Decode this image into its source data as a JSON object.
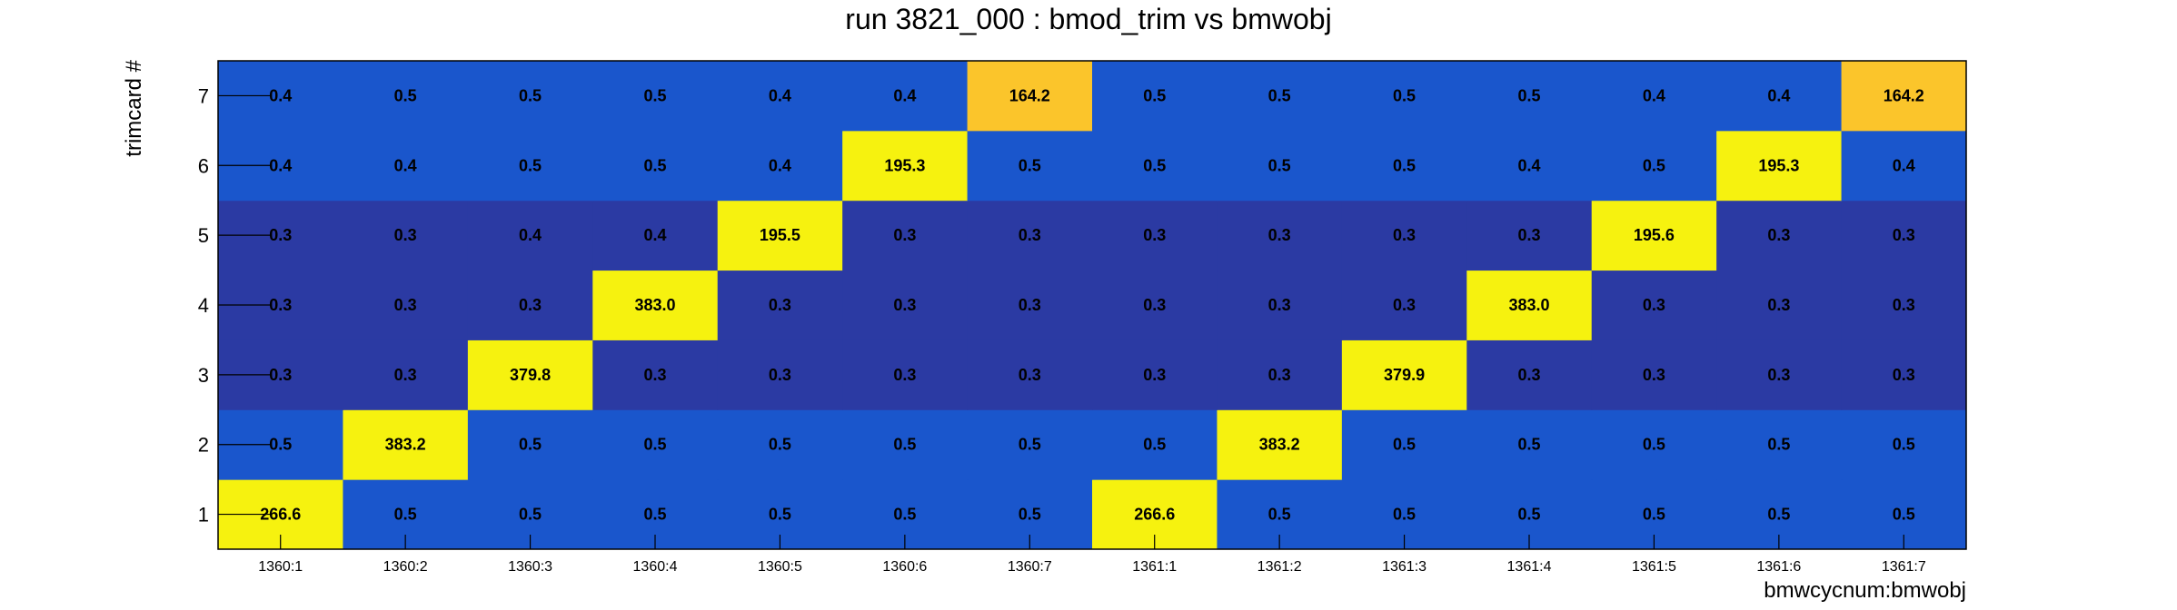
{
  "chart_data": {
    "type": "heatmap",
    "title": "run 3821_000 : bmod_trim vs bmwobj",
    "xlabel": "bmwcycnum:bmwobj",
    "ylabel": "trimcard #",
    "x_categories": [
      "1360:1",
      "1360:2",
      "1360:3",
      "1360:4",
      "1360:5",
      "1360:6",
      "1360:7",
      "1361:1",
      "1361:2",
      "1361:3",
      "1361:4",
      "1361:5",
      "1361:6",
      "1361:7"
    ],
    "y_categories": [
      "1",
      "2",
      "3",
      "4",
      "5",
      "6",
      "7"
    ],
    "values": [
      [
        266.6,
        0.5,
        0.5,
        0.5,
        0.5,
        0.5,
        0.5,
        266.6,
        0.5,
        0.5,
        0.5,
        0.5,
        0.5,
        0.5
      ],
      [
        0.5,
        383.2,
        0.5,
        0.5,
        0.5,
        0.5,
        0.5,
        0.5,
        383.2,
        0.5,
        0.5,
        0.5,
        0.5,
        0.5
      ],
      [
        0.3,
        0.3,
        379.8,
        0.3,
        0.3,
        0.3,
        0.3,
        0.3,
        0.3,
        379.9,
        0.3,
        0.3,
        0.3,
        0.3
      ],
      [
        0.3,
        0.3,
        0.3,
        383.0,
        0.3,
        0.3,
        0.3,
        0.3,
        0.3,
        0.3,
        383.0,
        0.3,
        0.3,
        0.3
      ],
      [
        0.3,
        0.3,
        0.4,
        0.4,
        195.5,
        0.3,
        0.3,
        0.3,
        0.3,
        0.3,
        0.3,
        195.6,
        0.3,
        0.3
      ],
      [
        0.4,
        0.4,
        0.5,
        0.5,
        0.4,
        195.3,
        0.5,
        0.5,
        0.5,
        0.5,
        0.4,
        0.5,
        195.3,
        0.4
      ],
      [
        0.4,
        0.5,
        0.5,
        0.5,
        0.4,
        0.4,
        164.2,
        0.5,
        0.5,
        0.5,
        0.5,
        0.4,
        0.4,
        164.2
      ]
    ],
    "grid": false,
    "colors": {
      "low_dark": "#2b3aa3",
      "low": "#1a56cc",
      "high_mid": "#fbc52b",
      "high": "#f6f20f",
      "axis": "#000000",
      "background": "#ffffff"
    }
  }
}
